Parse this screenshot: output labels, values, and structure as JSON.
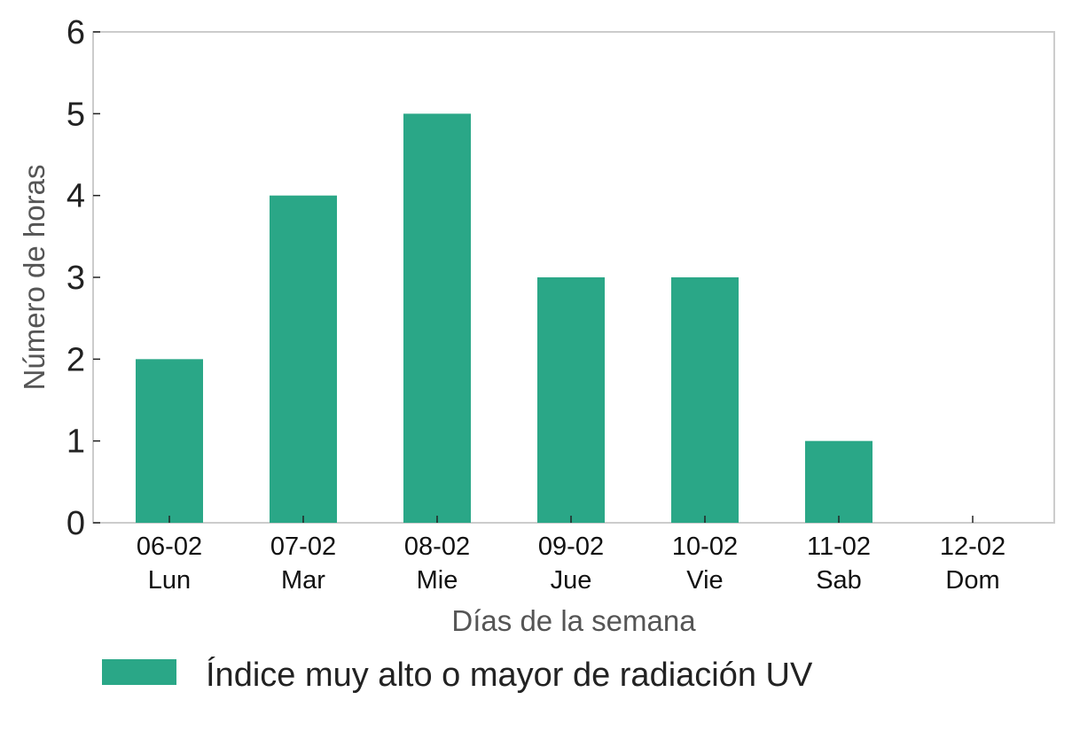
{
  "chart_data": {
    "type": "bar",
    "categories": [
      [
        "06-02",
        "Lun"
      ],
      [
        "07-02",
        "Mar"
      ],
      [
        "08-02",
        "Mie"
      ],
      [
        "09-02",
        "Jue"
      ],
      [
        "10-02",
        "Vie"
      ],
      [
        "11-02",
        "Sab"
      ],
      [
        "12-02",
        "Dom"
      ]
    ],
    "series": [
      {
        "name": "Índice muy alto o mayor de radiación UV",
        "values": [
          2,
          4,
          5,
          3,
          3,
          1,
          0
        ],
        "color": "#2aa787"
      }
    ],
    "xlabel": "Días de la semana",
    "ylabel": "Número de horas",
    "ylim": [
      0,
      6
    ],
    "yticks": [
      0,
      1,
      2,
      3,
      4,
      5,
      6
    ],
    "grid": false,
    "legend_position": "bottom-left"
  }
}
